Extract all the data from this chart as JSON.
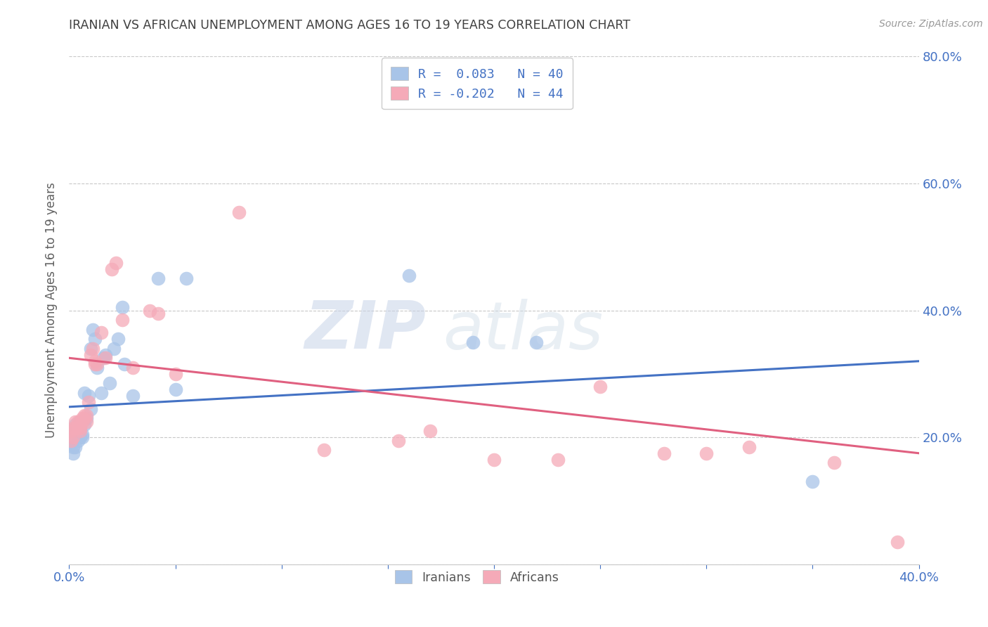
{
  "title": "IRANIAN VS AFRICAN UNEMPLOYMENT AMONG AGES 16 TO 19 YEARS CORRELATION CHART",
  "source": "Source: ZipAtlas.com",
  "ylabel": "Unemployment Among Ages 16 to 19 years",
  "xlim": [
    0.0,
    0.4
  ],
  "ylim": [
    0.0,
    0.8
  ],
  "xticks": [
    0.0,
    0.05,
    0.1,
    0.15,
    0.2,
    0.25,
    0.3,
    0.35,
    0.4
  ],
  "yticks": [
    0.0,
    0.2,
    0.4,
    0.6,
    0.8
  ],
  "iranian_R": 0.083,
  "iranian_N": 40,
  "african_R": -0.202,
  "african_N": 44,
  "iranian_color": "#a8c4e8",
  "african_color": "#f5aab8",
  "iranian_line_color": "#4472c4",
  "african_line_color": "#e06080",
  "background_color": "#ffffff",
  "grid_color": "#c8c8c8",
  "title_color": "#404040",
  "axis_label_color": "#606060",
  "tick_color": "#4472c4",
  "watermark_zip": "ZIP",
  "watermark_atlas": "atlas",
  "iranians_x": [
    0.001,
    0.001,
    0.002,
    0.002,
    0.002,
    0.003,
    0.003,
    0.003,
    0.004,
    0.004,
    0.005,
    0.005,
    0.005,
    0.006,
    0.006,
    0.007,
    0.007,
    0.008,
    0.009,
    0.01,
    0.01,
    0.011,
    0.012,
    0.013,
    0.015,
    0.016,
    0.017,
    0.019,
    0.021,
    0.023,
    0.025,
    0.026,
    0.03,
    0.042,
    0.05,
    0.055,
    0.16,
    0.19,
    0.22,
    0.35
  ],
  "iranians_y": [
    0.195,
    0.2,
    0.175,
    0.185,
    0.21,
    0.185,
    0.215,
    0.22,
    0.21,
    0.195,
    0.2,
    0.215,
    0.225,
    0.205,
    0.2,
    0.22,
    0.27,
    0.23,
    0.265,
    0.34,
    0.245,
    0.37,
    0.355,
    0.31,
    0.27,
    0.325,
    0.33,
    0.285,
    0.34,
    0.355,
    0.405,
    0.315,
    0.265,
    0.45,
    0.275,
    0.45,
    0.455,
    0.35,
    0.35,
    0.13
  ],
  "africans_x": [
    0.001,
    0.001,
    0.002,
    0.002,
    0.003,
    0.003,
    0.004,
    0.004,
    0.005,
    0.005,
    0.005,
    0.006,
    0.006,
    0.007,
    0.007,
    0.008,
    0.008,
    0.009,
    0.01,
    0.011,
    0.012,
    0.012,
    0.013,
    0.015,
    0.017,
    0.02,
    0.022,
    0.025,
    0.03,
    0.038,
    0.042,
    0.05,
    0.08,
    0.12,
    0.155,
    0.17,
    0.2,
    0.23,
    0.25,
    0.28,
    0.3,
    0.32,
    0.36,
    0.39
  ],
  "africans_y": [
    0.195,
    0.21,
    0.2,
    0.215,
    0.215,
    0.225,
    0.215,
    0.225,
    0.21,
    0.215,
    0.225,
    0.225,
    0.23,
    0.23,
    0.235,
    0.225,
    0.235,
    0.255,
    0.33,
    0.34,
    0.32,
    0.315,
    0.315,
    0.365,
    0.325,
    0.465,
    0.475,
    0.385,
    0.31,
    0.4,
    0.395,
    0.3,
    0.555,
    0.18,
    0.195,
    0.21,
    0.165,
    0.165,
    0.28,
    0.175,
    0.175,
    0.185,
    0.16,
    0.035
  ],
  "iran_line_start_y": 0.248,
  "iran_line_end_y": 0.32,
  "afr_line_start_y": 0.325,
  "afr_line_end_y": 0.175
}
